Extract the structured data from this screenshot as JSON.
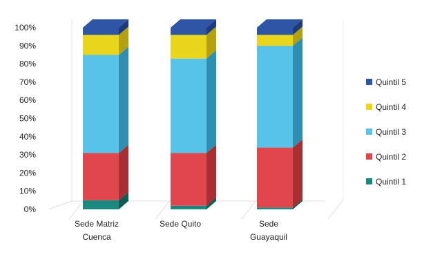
{
  "chart_data": {
    "type": "bar",
    "stacked": true,
    "three_d": true,
    "percent_scale": true,
    "title": "",
    "xlabel": "",
    "ylabel": "",
    "ylim": [
      0,
      100
    ],
    "y_ticks": [
      "0%",
      "10%",
      "20%",
      "30%",
      "40%",
      "50%",
      "60%",
      "70%",
      "80%",
      "90%",
      "100%"
    ],
    "categories": [
      [
        "Sede Matriz",
        "Cuenca"
      ],
      [
        "Sede Quito"
      ],
      [
        "Sede",
        "Guayaquil"
      ]
    ],
    "series": [
      {
        "name": "Quintil 1",
        "color": "#1a8a80",
        "side": "#0f5d56",
        "top": "#36aba0",
        "values": [
          5,
          2,
          1
        ]
      },
      {
        "name": "Quintil 2",
        "color": "#e0474c",
        "side": "#a82e33",
        "top": "#ef6a6e",
        "values": [
          26,
          29,
          33
        ]
      },
      {
        "name": "Quintil 3",
        "color": "#57c3e8",
        "side": "#2f8fb3",
        "top": "#85d6f1",
        "values": [
          54,
          52,
          56
        ]
      },
      {
        "name": "Quintil 4",
        "color": "#e8d51c",
        "side": "#b3a110",
        "top": "#f2e45a",
        "values": [
          11,
          13,
          6
        ]
      },
      {
        "name": "Quintil 5",
        "color": "#2f56a6",
        "side": "#1f3a78",
        "top": "#2f56a6",
        "values": [
          4,
          4,
          4
        ]
      }
    ],
    "legend": "right",
    "grid": false
  }
}
